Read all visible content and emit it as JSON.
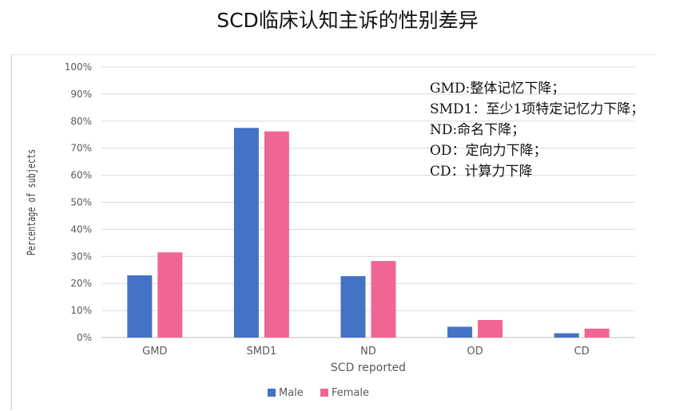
{
  "page": {
    "title": "SCD临床认知主诉的性别差异"
  },
  "notes": [
    "GMD:整体记忆下降；",
    "SMD1：至少1项特定记忆力下降；",
    "ND:命名下降；",
    "OD：定向力下降；",
    "CD：计算力下降"
  ],
  "colors": {
    "male": "#4472c4",
    "female": "#f06595",
    "grid": "#d9d9d9",
    "axis_text": "#595959"
  },
  "chart_data": {
    "type": "bar",
    "title": "",
    "xlabel": "SCD reported",
    "ylabel": "Percentage of subjects",
    "categories": [
      "GMD",
      "SMD1",
      "ND",
      "OD",
      "CD"
    ],
    "series": [
      {
        "name": "Male",
        "values": [
          23,
          77.5,
          22.7,
          4,
          1.6
        ]
      },
      {
        "name": "Female",
        "values": [
          31.5,
          76.2,
          28.3,
          6.5,
          3.3
        ]
      }
    ],
    "ylim": [
      0,
      100
    ],
    "yticks": [
      "0%",
      "10%",
      "20%",
      "30%",
      "40%",
      "50%",
      "60%",
      "70%",
      "80%",
      "90%",
      "100%"
    ],
    "grid": true,
    "legend": "bottom"
  }
}
